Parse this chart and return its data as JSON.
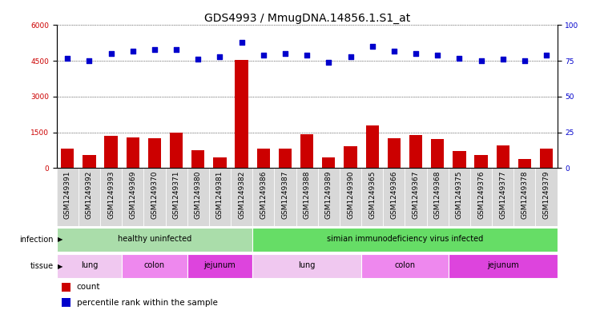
{
  "title": "GDS4993 / MmugDNA.14856.1.S1_at",
  "samples": [
    "GSM1249391",
    "GSM1249392",
    "GSM1249393",
    "GSM1249369",
    "GSM1249370",
    "GSM1249371",
    "GSM1249380",
    "GSM1249381",
    "GSM1249382",
    "GSM1249386",
    "GSM1249387",
    "GSM1249388",
    "GSM1249389",
    "GSM1249390",
    "GSM1249365",
    "GSM1249366",
    "GSM1249367",
    "GSM1249368",
    "GSM1249375",
    "GSM1249376",
    "GSM1249377",
    "GSM1249378",
    "GSM1249379"
  ],
  "counts": [
    800,
    550,
    1350,
    1300,
    1250,
    1480,
    750,
    450,
    4550,
    800,
    800,
    1430,
    450,
    900,
    1800,
    1250,
    1380,
    1200,
    700,
    550,
    950,
    380,
    800
  ],
  "percentiles": [
    77,
    75,
    80,
    82,
    83,
    83,
    76,
    78,
    88,
    79,
    80,
    79,
    74,
    78,
    85,
    82,
    80,
    79,
    77,
    75,
    76,
    75,
    79
  ],
  "ylim_left": [
    0,
    6000
  ],
  "ylim_right": [
    0,
    100
  ],
  "yticks_left": [
    0,
    1500,
    3000,
    4500,
    6000
  ],
  "yticks_right": [
    0,
    25,
    50,
    75,
    100
  ],
  "bar_color": "#cc0000",
  "dot_color": "#0000cc",
  "chart_bg": "#ffffff",
  "tick_bg": "#d8d8d8",
  "infection_groups": [
    {
      "label": "healthy uninfected",
      "start": 0,
      "end": 8,
      "color": "#aaddaa"
    },
    {
      "label": "simian immunodeficiency virus infected",
      "start": 9,
      "end": 22,
      "color": "#66dd66"
    }
  ],
  "tissue_groups": [
    {
      "label": "lung",
      "start": 0,
      "end": 2,
      "color": "#f0c8f0"
    },
    {
      "label": "colon",
      "start": 3,
      "end": 5,
      "color": "#ee88ee"
    },
    {
      "label": "jejunum",
      "start": 6,
      "end": 8,
      "color": "#ee44ee"
    },
    {
      "label": "lung",
      "start": 9,
      "end": 13,
      "color": "#f0c8f0"
    },
    {
      "label": "colon",
      "start": 14,
      "end": 17,
      "color": "#ee88ee"
    },
    {
      "label": "jejunum",
      "start": 18,
      "end": 22,
      "color": "#ee44ee"
    }
  ],
  "legend_items": [
    {
      "label": "count",
      "color": "#cc0000"
    },
    {
      "label": "percentile rank within the sample",
      "color": "#0000cc"
    }
  ],
  "grid_color": "#000000",
  "title_fontsize": 10,
  "tick_fontsize": 6.5,
  "label_fontsize": 7.5
}
